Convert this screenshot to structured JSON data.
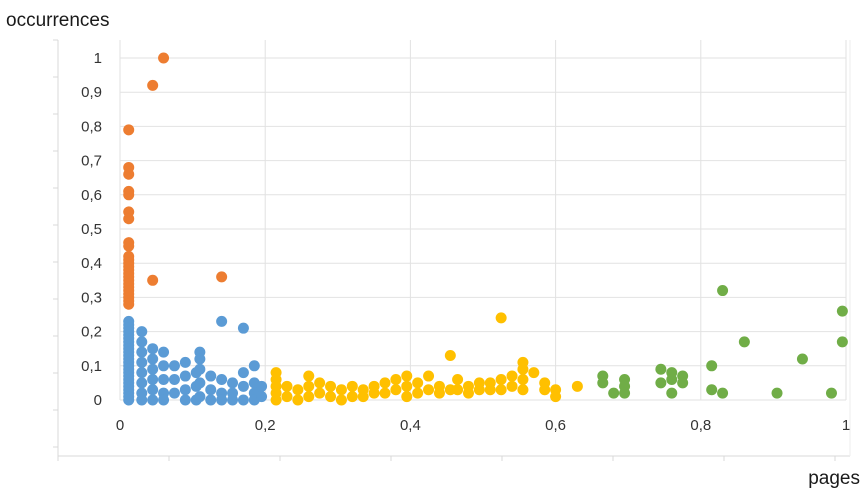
{
  "chart_data": {
    "type": "scatter",
    "title": "",
    "ylabel": "occurrences",
    "xlabel": "pages",
    "xlim": [
      0,
      1
    ],
    "ylim": [
      0,
      1
    ],
    "x_ticks": [
      "0",
      "0,2",
      "0,4",
      "0,6",
      "0,8",
      "1"
    ],
    "y_ticks": [
      "0",
      "0,1",
      "0,2",
      "0,3",
      "0,4",
      "0,5",
      "0,6",
      "0,7",
      "0,8",
      "0,9",
      "1"
    ],
    "grid": true,
    "legend": "none",
    "series": [
      {
        "color": "#ED7D31",
        "points": [
          [
            0.06,
            1.0
          ],
          [
            0.045,
            0.92
          ],
          [
            0.012,
            0.79
          ],
          [
            0.012,
            0.68
          ],
          [
            0.012,
            0.66
          ],
          [
            0.012,
            0.61
          ],
          [
            0.012,
            0.6
          ],
          [
            0.012,
            0.55
          ],
          [
            0.012,
            0.53
          ],
          [
            0.012,
            0.46
          ],
          [
            0.012,
            0.45
          ],
          [
            0.012,
            0.42
          ],
          [
            0.012,
            0.41
          ],
          [
            0.012,
            0.4
          ],
          [
            0.012,
            0.39
          ],
          [
            0.012,
            0.38
          ],
          [
            0.012,
            0.37
          ],
          [
            0.012,
            0.36
          ],
          [
            0.012,
            0.35
          ],
          [
            0.012,
            0.34
          ],
          [
            0.012,
            0.33
          ],
          [
            0.012,
            0.32
          ],
          [
            0.012,
            0.31
          ],
          [
            0.012,
            0.3
          ],
          [
            0.012,
            0.29
          ],
          [
            0.012,
            0.28
          ],
          [
            0.045,
            0.35
          ],
          [
            0.14,
            0.36
          ]
        ]
      },
      {
        "color": "#5B9BD5",
        "points": [
          [
            0.012,
            0.23
          ],
          [
            0.012,
            0.22
          ],
          [
            0.012,
            0.21
          ],
          [
            0.012,
            0.2
          ],
          [
            0.012,
            0.19
          ],
          [
            0.012,
            0.18
          ],
          [
            0.012,
            0.17
          ],
          [
            0.012,
            0.16
          ],
          [
            0.012,
            0.15
          ],
          [
            0.012,
            0.14
          ],
          [
            0.012,
            0.13
          ],
          [
            0.012,
            0.12
          ],
          [
            0.012,
            0.11
          ],
          [
            0.012,
            0.1
          ],
          [
            0.012,
            0.09
          ],
          [
            0.012,
            0.08
          ],
          [
            0.012,
            0.07
          ],
          [
            0.012,
            0.06
          ],
          [
            0.012,
            0.05
          ],
          [
            0.012,
            0.04
          ],
          [
            0.012,
            0.03
          ],
          [
            0.012,
            0.02
          ],
          [
            0.012,
            0.01
          ],
          [
            0.012,
            0.0
          ],
          [
            0.03,
            0.2
          ],
          [
            0.03,
            0.17
          ],
          [
            0.03,
            0.14
          ],
          [
            0.03,
            0.11
          ],
          [
            0.03,
            0.08
          ],
          [
            0.03,
            0.05
          ],
          [
            0.03,
            0.02
          ],
          [
            0.03,
            0.0
          ],
          [
            0.045,
            0.15
          ],
          [
            0.045,
            0.12
          ],
          [
            0.045,
            0.09
          ],
          [
            0.045,
            0.06
          ],
          [
            0.045,
            0.03
          ],
          [
            0.045,
            0.0
          ],
          [
            0.06,
            0.14
          ],
          [
            0.06,
            0.1
          ],
          [
            0.06,
            0.06
          ],
          [
            0.06,
            0.02
          ],
          [
            0.06,
            0.0
          ],
          [
            0.075,
            0.1
          ],
          [
            0.075,
            0.06
          ],
          [
            0.075,
            0.02
          ],
          [
            0.09,
            0.11
          ],
          [
            0.09,
            0.07
          ],
          [
            0.09,
            0.03
          ],
          [
            0.09,
            0.0
          ],
          [
            0.105,
            0.08
          ],
          [
            0.105,
            0.04
          ],
          [
            0.105,
            0.0
          ],
          [
            0.11,
            0.14
          ],
          [
            0.11,
            0.12
          ],
          [
            0.11,
            0.09
          ],
          [
            0.11,
            0.05
          ],
          [
            0.11,
            0.01
          ],
          [
            0.125,
            0.07
          ],
          [
            0.125,
            0.03
          ],
          [
            0.125,
            0.0
          ],
          [
            0.14,
            0.23
          ],
          [
            0.14,
            0.06
          ],
          [
            0.14,
            0.02
          ],
          [
            0.14,
            0.0
          ],
          [
            0.155,
            0.05
          ],
          [
            0.155,
            0.02
          ],
          [
            0.155,
            0.0
          ],
          [
            0.17,
            0.21
          ],
          [
            0.17,
            0.08
          ],
          [
            0.17,
            0.04
          ],
          [
            0.17,
            0.0
          ],
          [
            0.185,
            0.1
          ],
          [
            0.185,
            0.05
          ],
          [
            0.185,
            0.02
          ],
          [
            0.185,
            0.0
          ],
          [
            0.195,
            0.04
          ],
          [
            0.195,
            0.01
          ]
        ]
      },
      {
        "color": "#FFC000",
        "points": [
          [
            0.215,
            0.08
          ],
          [
            0.215,
            0.06
          ],
          [
            0.215,
            0.04
          ],
          [
            0.215,
            0.02
          ],
          [
            0.215,
            0.0
          ],
          [
            0.23,
            0.04
          ],
          [
            0.23,
            0.01
          ],
          [
            0.245,
            0.03
          ],
          [
            0.245,
            0.0
          ],
          [
            0.26,
            0.07
          ],
          [
            0.26,
            0.04
          ],
          [
            0.26,
            0.01
          ],
          [
            0.275,
            0.05
          ],
          [
            0.275,
            0.02
          ],
          [
            0.29,
            0.04
          ],
          [
            0.29,
            0.01
          ],
          [
            0.305,
            0.03
          ],
          [
            0.305,
            0.0
          ],
          [
            0.32,
            0.04
          ],
          [
            0.32,
            0.01
          ],
          [
            0.335,
            0.03
          ],
          [
            0.335,
            0.01
          ],
          [
            0.35,
            0.04
          ],
          [
            0.35,
            0.02
          ],
          [
            0.365,
            0.05
          ],
          [
            0.365,
            0.02
          ],
          [
            0.38,
            0.06
          ],
          [
            0.38,
            0.03
          ],
          [
            0.395,
            0.07
          ],
          [
            0.395,
            0.04
          ],
          [
            0.395,
            0.01
          ],
          [
            0.41,
            0.05
          ],
          [
            0.41,
            0.02
          ],
          [
            0.425,
            0.07
          ],
          [
            0.425,
            0.03
          ],
          [
            0.44,
            0.04
          ],
          [
            0.44,
            0.02
          ],
          [
            0.455,
            0.13
          ],
          [
            0.455,
            0.03
          ],
          [
            0.465,
            0.06
          ],
          [
            0.465,
            0.03
          ],
          [
            0.48,
            0.04
          ],
          [
            0.48,
            0.02
          ],
          [
            0.495,
            0.05
          ],
          [
            0.495,
            0.03
          ],
          [
            0.51,
            0.05
          ],
          [
            0.51,
            0.03
          ],
          [
            0.525,
            0.24
          ],
          [
            0.525,
            0.06
          ],
          [
            0.525,
            0.03
          ],
          [
            0.54,
            0.07
          ],
          [
            0.54,
            0.04
          ],
          [
            0.555,
            0.11
          ],
          [
            0.555,
            0.09
          ],
          [
            0.555,
            0.06
          ],
          [
            0.555,
            0.03
          ],
          [
            0.57,
            0.08
          ],
          [
            0.585,
            0.05
          ],
          [
            0.585,
            0.03
          ],
          [
            0.6,
            0.03
          ],
          [
            0.6,
            0.01
          ],
          [
            0.63,
            0.04
          ]
        ]
      },
      {
        "color": "#70AD47",
        "points": [
          [
            0.665,
            0.07
          ],
          [
            0.665,
            0.05
          ],
          [
            0.68,
            0.02
          ],
          [
            0.695,
            0.06
          ],
          [
            0.695,
            0.04
          ],
          [
            0.695,
            0.02
          ],
          [
            0.745,
            0.09
          ],
          [
            0.745,
            0.05
          ],
          [
            0.76,
            0.08
          ],
          [
            0.76,
            0.06
          ],
          [
            0.76,
            0.02
          ],
          [
            0.775,
            0.07
          ],
          [
            0.775,
            0.05
          ],
          [
            0.815,
            0.1
          ],
          [
            0.815,
            0.03
          ],
          [
            0.83,
            0.32
          ],
          [
            0.83,
            0.02
          ],
          [
            0.86,
            0.17
          ],
          [
            0.905,
            0.02
          ],
          [
            0.94,
            0.12
          ],
          [
            0.98,
            0.02
          ],
          [
            0.995,
            0.26
          ],
          [
            0.995,
            0.17
          ]
        ]
      }
    ]
  }
}
